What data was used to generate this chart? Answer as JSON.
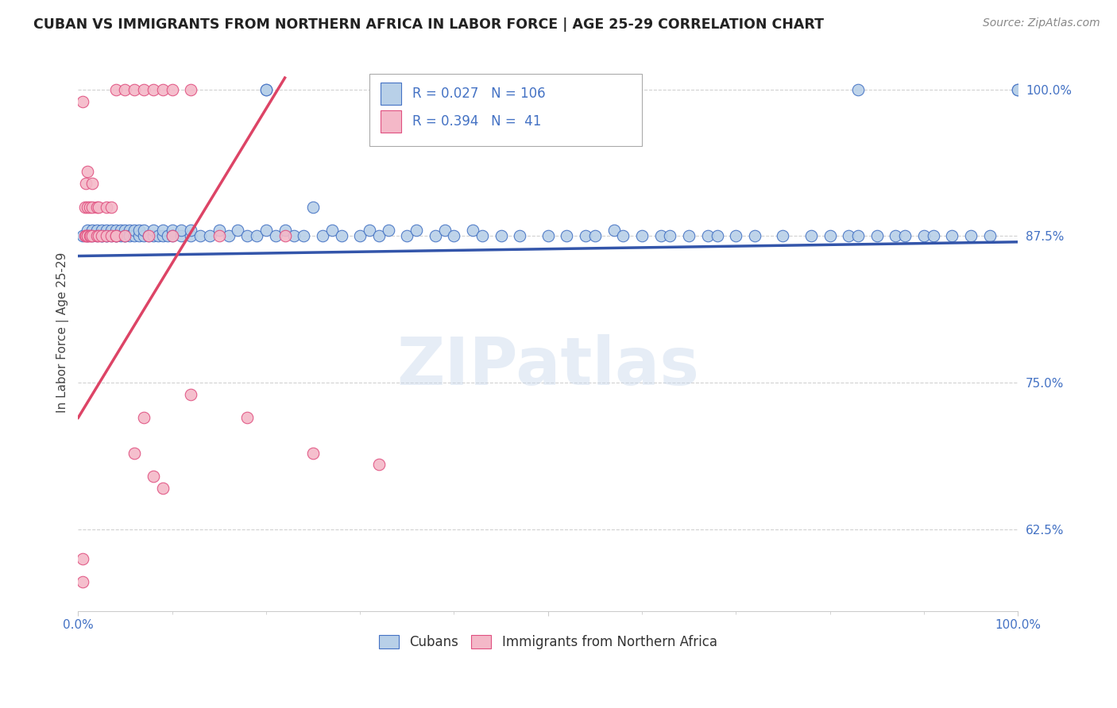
{
  "title": "CUBAN VS IMMIGRANTS FROM NORTHERN AFRICA IN LABOR FORCE | AGE 25-29 CORRELATION CHART",
  "source": "Source: ZipAtlas.com",
  "ylabel": "In Labor Force | Age 25-29",
  "xlim": [
    0.0,
    1.0
  ],
  "ylim": [
    0.555,
    1.03
  ],
  "yticks": [
    0.625,
    0.75,
    0.875,
    1.0
  ],
  "ytick_labels": [
    "62.5%",
    "75.0%",
    "87.5%",
    "100.0%"
  ],
  "legend_labels": [
    "Cubans",
    "Immigrants from Northern Africa"
  ],
  "blue_fill": "#b8d0e8",
  "blue_edge": "#4472c4",
  "pink_fill": "#f4b8c8",
  "pink_edge": "#e05080",
  "blue_line_color": "#3355aa",
  "pink_line_color": "#dd4466",
  "R_blue": 0.027,
  "N_blue": 106,
  "R_pink": 0.394,
  "N_pink": 41,
  "blue_x": [
    0.005,
    0.01,
    0.01,
    0.015,
    0.015,
    0.02,
    0.02,
    0.025,
    0.025,
    0.025,
    0.03,
    0.03,
    0.03,
    0.035,
    0.035,
    0.04,
    0.04,
    0.04,
    0.045,
    0.045,
    0.05,
    0.05,
    0.05,
    0.055,
    0.055,
    0.06,
    0.06,
    0.065,
    0.065,
    0.07,
    0.07,
    0.075,
    0.08,
    0.08,
    0.085,
    0.09,
    0.09,
    0.095,
    0.1,
    0.1,
    0.11,
    0.11,
    0.12,
    0.12,
    0.13,
    0.14,
    0.15,
    0.16,
    0.17,
    0.18,
    0.19,
    0.2,
    0.21,
    0.22,
    0.23,
    0.24,
    0.25,
    0.26,
    0.27,
    0.28,
    0.3,
    0.31,
    0.32,
    0.33,
    0.35,
    0.36,
    0.38,
    0.39,
    0.4,
    0.42,
    0.43,
    0.45,
    0.47,
    0.5,
    0.52,
    0.54,
    0.55,
    0.57,
    0.58,
    0.6,
    0.62,
    0.63,
    0.65,
    0.67,
    0.68,
    0.7,
    0.72,
    0.75,
    0.78,
    0.8,
    0.82,
    0.83,
    0.85,
    0.87,
    0.88,
    0.9,
    0.91,
    0.93,
    0.95,
    0.97,
    1.0,
    1.0,
    0.4,
    0.83,
    0.2,
    0.2
  ],
  "blue_y": [
    0.875,
    0.875,
    0.88,
    0.875,
    0.88,
    0.875,
    0.88,
    0.875,
    0.88,
    0.875,
    0.875,
    0.88,
    0.875,
    0.88,
    0.875,
    0.875,
    0.88,
    0.875,
    0.88,
    0.875,
    0.875,
    0.88,
    0.875,
    0.88,
    0.875,
    0.875,
    0.88,
    0.875,
    0.88,
    0.875,
    0.88,
    0.875,
    0.875,
    0.88,
    0.875,
    0.875,
    0.88,
    0.875,
    0.88,
    0.875,
    0.875,
    0.88,
    0.875,
    0.88,
    0.875,
    0.875,
    0.88,
    0.875,
    0.88,
    0.875,
    0.875,
    0.88,
    0.875,
    0.88,
    0.875,
    0.875,
    0.9,
    0.875,
    0.88,
    0.875,
    0.875,
    0.88,
    0.875,
    0.88,
    0.875,
    0.88,
    0.875,
    0.88,
    0.875,
    0.88,
    0.875,
    0.875,
    0.875,
    0.875,
    0.875,
    0.875,
    0.875,
    0.88,
    0.875,
    0.875,
    0.875,
    0.875,
    0.875,
    0.875,
    0.875,
    0.875,
    0.875,
    0.875,
    0.875,
    0.875,
    0.875,
    0.875,
    0.875,
    0.875,
    0.875,
    0.875,
    0.875,
    0.875,
    0.875,
    0.875,
    1.0,
    1.0,
    1.0,
    1.0,
    1.0,
    1.0
  ],
  "pink_x": [
    0.005,
    0.005,
    0.007,
    0.007,
    0.008,
    0.008,
    0.01,
    0.01,
    0.01,
    0.01,
    0.012,
    0.012,
    0.013,
    0.015,
    0.015,
    0.015,
    0.02,
    0.02,
    0.022,
    0.022,
    0.025,
    0.03,
    0.03,
    0.035,
    0.035,
    0.04,
    0.04,
    0.05,
    0.06,
    0.07,
    0.075,
    0.08,
    0.09,
    0.1,
    0.12,
    0.15,
    0.18,
    0.22,
    0.25,
    0.32,
    0.005
  ],
  "pink_y": [
    0.58,
    0.6,
    0.875,
    0.9,
    0.875,
    0.92,
    0.875,
    0.9,
    0.875,
    0.93,
    0.875,
    0.9,
    0.875,
    0.9,
    0.875,
    0.92,
    0.875,
    0.9,
    0.875,
    0.9,
    0.875,
    0.875,
    0.9,
    0.875,
    0.9,
    0.875,
    0.875,
    0.875,
    0.69,
    0.72,
    0.875,
    0.67,
    0.66,
    0.875,
    0.74,
    0.875,
    0.72,
    0.875,
    0.69,
    0.68,
    0.99
  ],
  "top_pink_x": [
    0.04,
    0.05,
    0.06,
    0.07,
    0.08,
    0.09,
    0.1,
    0.12
  ],
  "top_pink_y": [
    1.0,
    1.0,
    1.0,
    1.0,
    1.0,
    1.0,
    1.0,
    1.0
  ],
  "blue_trend": [
    0.0,
    1.0,
    0.858,
    0.87
  ],
  "pink_trend": [
    0.0,
    0.22,
    0.72,
    1.01
  ],
  "watermark": "ZIPatlas",
  "title_color": "#222222",
  "axis_color": "#4472c4",
  "grid_color": "#cccccc",
  "bg_color": "#ffffff",
  "title_fontsize": 12.5,
  "source_fontsize": 10,
  "tick_fontsize": 11
}
